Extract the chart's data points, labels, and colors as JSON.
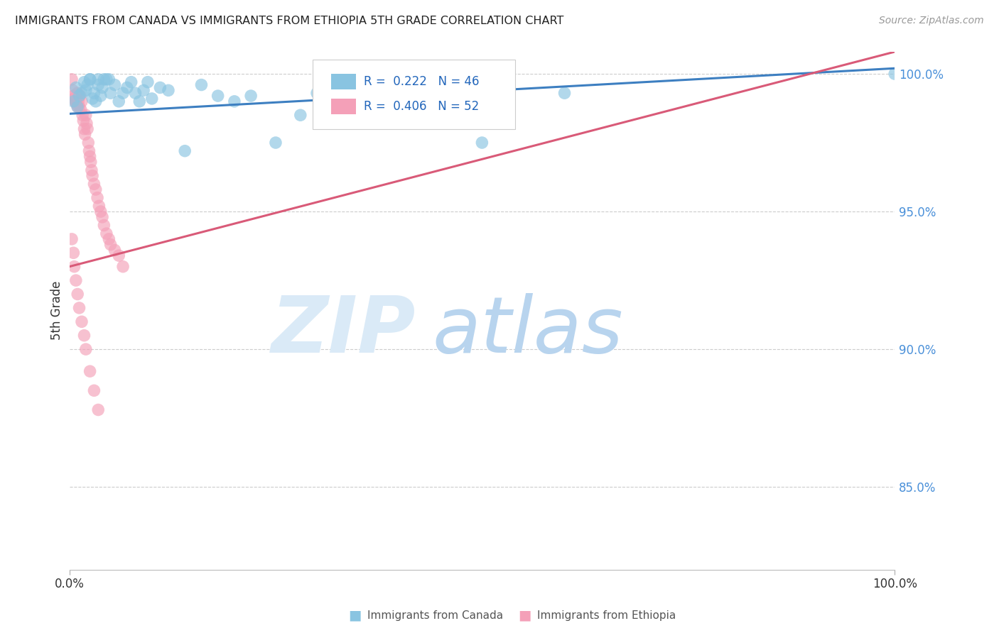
{
  "title": "IMMIGRANTS FROM CANADA VS IMMIGRANTS FROM ETHIOPIA 5TH GRADE CORRELATION CHART",
  "source": "Source: ZipAtlas.com",
  "ylabel": "5th Grade",
  "xlim": [
    0.0,
    1.0
  ],
  "ylim": [
    0.82,
    1.008
  ],
  "ytick_values": [
    0.85,
    0.9,
    0.95,
    1.0
  ],
  "ytick_labels": [
    "85.0%",
    "90.0%",
    "95.0%",
    "100.0%"
  ],
  "canada_color": "#89c4e1",
  "ethiopia_color": "#f4a0b8",
  "canada_line_color": "#3d7fc1",
  "ethiopia_line_color": "#d95a78",
  "canada_R": 0.222,
  "canada_N": 46,
  "ethiopia_R": 0.406,
  "ethiopia_N": 52,
  "legend_label_canada": "Immigrants from Canada",
  "legend_label_ethiopia": "Immigrants from Ethiopia",
  "canada_line_x0": 0.0,
  "canada_line_y0": 0.9855,
  "canada_line_x1": 1.0,
  "canada_line_y1": 1.002,
  "ethiopia_line_x0": 0.0,
  "ethiopia_line_y0": 0.93,
  "ethiopia_line_x1": 1.0,
  "ethiopia_line_y1": 1.008,
  "canada_scatter_x": [
    0.005,
    0.008,
    0.01,
    0.012,
    0.015,
    0.018,
    0.02,
    0.022,
    0.025,
    0.025,
    0.028,
    0.03,
    0.032,
    0.035,
    0.035,
    0.038,
    0.04,
    0.042,
    0.045,
    0.048,
    0.05,
    0.055,
    0.06,
    0.065,
    0.07,
    0.075,
    0.08,
    0.085,
    0.09,
    0.095,
    0.1,
    0.11,
    0.12,
    0.14,
    0.16,
    0.18,
    0.2,
    0.22,
    0.25,
    0.28,
    0.3,
    0.35,
    0.4,
    0.5,
    0.6,
    1.0
  ],
  "canada_scatter_y": [
    0.99,
    0.995,
    0.988,
    0.992,
    0.993,
    0.997,
    0.994,
    0.996,
    0.998,
    0.998,
    0.991,
    0.993,
    0.99,
    0.996,
    0.998,
    0.992,
    0.995,
    0.998,
    0.998,
    0.998,
    0.993,
    0.996,
    0.99,
    0.993,
    0.995,
    0.997,
    0.993,
    0.99,
    0.994,
    0.997,
    0.991,
    0.995,
    0.994,
    0.972,
    0.996,
    0.992,
    0.99,
    0.992,
    0.975,
    0.985,
    0.993,
    0.995,
    0.991,
    0.975,
    0.993,
    1.0
  ],
  "ethiopia_scatter_x": [
    0.003,
    0.004,
    0.005,
    0.006,
    0.007,
    0.008,
    0.009,
    0.01,
    0.01,
    0.011,
    0.012,
    0.013,
    0.014,
    0.015,
    0.016,
    0.017,
    0.018,
    0.019,
    0.02,
    0.021,
    0.022,
    0.023,
    0.024,
    0.025,
    0.026,
    0.027,
    0.028,
    0.03,
    0.032,
    0.034,
    0.036,
    0.038,
    0.04,
    0.042,
    0.045,
    0.048,
    0.05,
    0.055,
    0.06,
    0.065,
    0.003,
    0.005,
    0.006,
    0.008,
    0.01,
    0.012,
    0.015,
    0.018,
    0.02,
    0.025,
    0.03,
    0.035
  ],
  "ethiopia_scatter_y": [
    0.998,
    0.994,
    0.992,
    0.991,
    0.99,
    0.99,
    0.989,
    0.988,
    0.993,
    0.99,
    0.988,
    0.992,
    0.987,
    0.99,
    0.985,
    0.983,
    0.98,
    0.978,
    0.985,
    0.982,
    0.98,
    0.975,
    0.972,
    0.97,
    0.968,
    0.965,
    0.963,
    0.96,
    0.958,
    0.955,
    0.952,
    0.95,
    0.948,
    0.945,
    0.942,
    0.94,
    0.938,
    0.936,
    0.934,
    0.93,
    0.94,
    0.935,
    0.93,
    0.925,
    0.92,
    0.915,
    0.91,
    0.905,
    0.9,
    0.892,
    0.885,
    0.878
  ]
}
